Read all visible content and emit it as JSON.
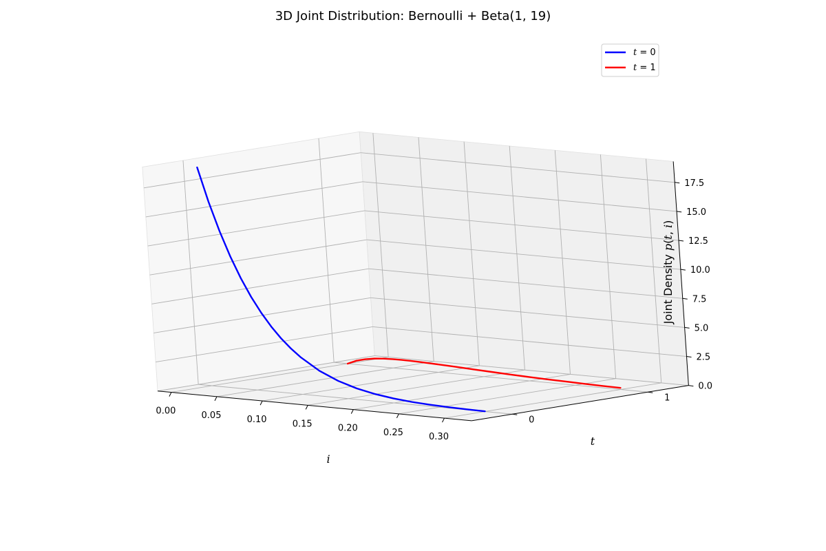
{
  "chart_data": {
    "type": "line",
    "projection": "3d",
    "title": "3D Joint Distribution: Bernoulli + Beta(1, 19)",
    "xlabel": "i",
    "ylabel": "t",
    "zlabel": "Joint Density p(t, i)",
    "x_ticks": [
      "0.00",
      "0.05",
      "0.10",
      "0.15",
      "0.20",
      "0.25",
      "0.30"
    ],
    "y_ticks": [
      "0",
      "1"
    ],
    "z_ticks": [
      "0.0",
      "2.5",
      "5.0",
      "7.5",
      "10.0",
      "12.5",
      "15.0",
      "17.5"
    ],
    "xlim": [
      -0.015,
      0.33
    ],
    "ylim": [
      -0.3,
      1.3
    ],
    "zlim": [
      0,
      19.3
    ],
    "grid": true,
    "legend_position": "top-right",
    "series": [
      {
        "name": "t = 0",
        "t": 0,
        "color": "#0000ff",
        "x": [
          0.0,
          0.01,
          0.02,
          0.03,
          0.04,
          0.05,
          0.06,
          0.07,
          0.08,
          0.09,
          0.1,
          0.12,
          0.14,
          0.16,
          0.18,
          0.2,
          0.22,
          0.24,
          0.26,
          0.28,
          0.3
        ],
        "z": [
          18.81,
          15.92,
          13.46,
          11.35,
          9.55,
          8.02,
          6.72,
          5.61,
          4.67,
          3.88,
          3.21,
          2.17,
          1.45,
          0.95,
          0.61,
          0.38,
          0.23,
          0.14,
          0.08,
          0.04,
          0.02
        ]
      },
      {
        "name": "t = 1",
        "t": 1,
        "color": "#ff0000",
        "x": [
          0.0,
          0.01,
          0.02,
          0.03,
          0.04,
          0.05,
          0.06,
          0.07,
          0.08,
          0.09,
          0.1,
          0.12,
          0.14,
          0.16,
          0.18,
          0.2,
          0.22,
          0.24,
          0.26,
          0.28,
          0.3
        ],
        "z": [
          0.0,
          0.33,
          0.53,
          0.66,
          0.73,
          0.76,
          0.77,
          0.76,
          0.74,
          0.71,
          0.68,
          0.61,
          0.53,
          0.46,
          0.39,
          0.33,
          0.28,
          0.24,
          0.2,
          0.16,
          0.14
        ]
      }
    ]
  }
}
